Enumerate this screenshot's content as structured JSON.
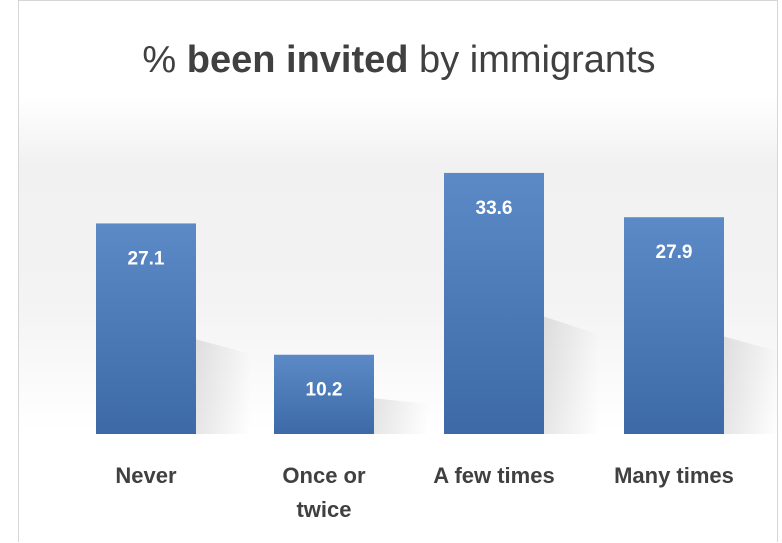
{
  "chart_data": {
    "type": "bar",
    "title": {
      "prefix": "% ",
      "bold": "been invited",
      "suffix": " by immigrants"
    },
    "categories": [
      [
        "Never"
      ],
      [
        "Once or",
        "twice"
      ],
      [
        "A few times"
      ],
      [
        "Many times"
      ]
    ],
    "values": [
      27.1,
      10.2,
      33.6,
      27.9
    ],
    "value_labels": [
      "27.1",
      "10.2",
      "33.6",
      "27.9"
    ],
    "ylim": [
      0,
      40
    ],
    "grid": false,
    "legend": "none",
    "colors": {
      "bar_top": "#5b8ac7",
      "bar_bottom": "#3d6aa7",
      "label": "#404040",
      "value_label": "#ffffff"
    }
  }
}
